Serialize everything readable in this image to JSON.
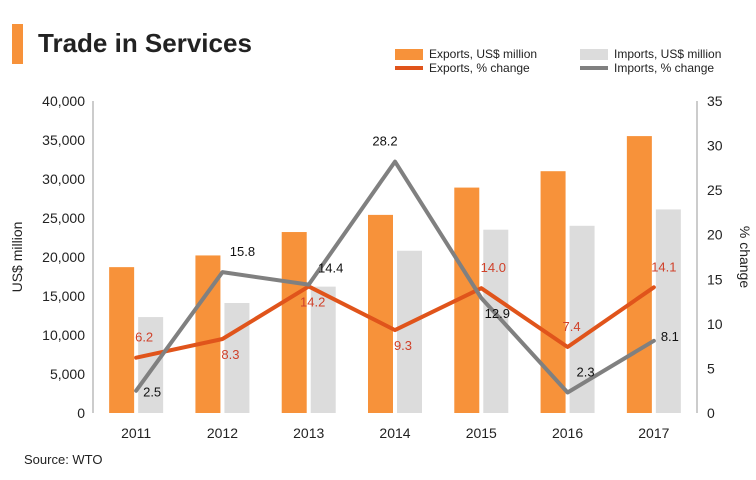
{
  "page": {
    "title": "Trade in Services",
    "source": "Source: WTO",
    "accent_color": "#F7923A"
  },
  "chart_data": {
    "type": "bar+line",
    "categories": [
      "2011",
      "2012",
      "2013",
      "2014",
      "2015",
      "2016",
      "2017"
    ],
    "series": [
      {
        "name": "Exports, US$ million",
        "kind": "bar",
        "axis": "left",
        "color": "#F7923A",
        "values": [
          18700,
          20200,
          23200,
          25400,
          28900,
          31000,
          35500
        ]
      },
      {
        "name": "Imports, US$ million",
        "kind": "bar",
        "axis": "left",
        "color": "#DCDCDC",
        "values": [
          12300,
          14100,
          16200,
          20800,
          23500,
          24000,
          26100
        ]
      },
      {
        "name": "Exports, % change",
        "kind": "line",
        "axis": "right",
        "color": "#E0541B",
        "label_color": "#D0412A",
        "values": [
          6.2,
          8.3,
          14.2,
          9.3,
          14.0,
          7.4,
          14.1
        ],
        "labels": [
          "6.2",
          "8.3",
          "14.2",
          "9.3",
          "14.0",
          "7.4",
          "14.1"
        ]
      },
      {
        "name": "Imports, % change",
        "kind": "line",
        "axis": "right",
        "color": "#808080",
        "label_color": "#111111",
        "values": [
          2.5,
          15.8,
          14.4,
          28.2,
          12.9,
          2.3,
          8.1
        ],
        "labels": [
          "2.5",
          "15.8",
          "14.4",
          "28.2",
          "12.9",
          "2.3",
          "8.1"
        ]
      }
    ],
    "y_left": {
      "label": "US$ million",
      "min": 0,
      "max": 40000,
      "step": 5000,
      "ticks": [
        "0",
        "5,000",
        "10,000",
        "15,000",
        "20,000",
        "25,000",
        "30,000",
        "35,000",
        "40,000"
      ]
    },
    "y_right": {
      "label": "% change",
      "min": 0,
      "max": 35,
      "step": 5,
      "ticks": [
        "0",
        "5",
        "10",
        "15",
        "20",
        "25",
        "30",
        "35"
      ]
    },
    "legend": [
      "Exports, US$ million",
      "Imports, US$ million",
      "Exports, % change",
      "Imports, % change"
    ],
    "legend_position": "top-right",
    "grid": false
  }
}
